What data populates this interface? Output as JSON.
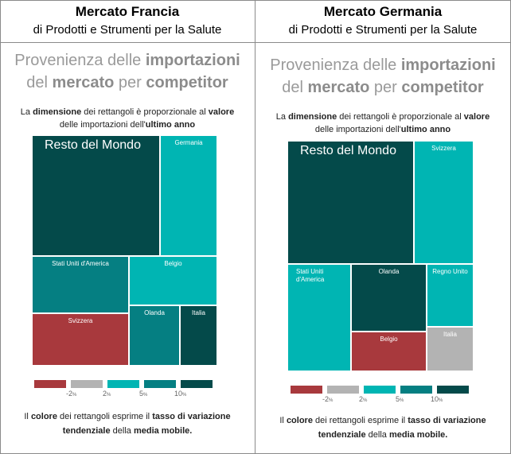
{
  "colors": {
    "dark": "#044a4a",
    "teal": "#00b5b3",
    "midteal": "#057f82",
    "red": "#a8393d",
    "grey": "#b3b3b3"
  },
  "left": {
    "title": "Mercato Francia",
    "subtitle": "di Prodotti e Strumenti per la Salute",
    "heading": {
      "p1": "Provenienza delle ",
      "b1": "importazioni",
      "p2": "del ",
      "b2": "mercato",
      "p3": " per ",
      "b3": "competitor"
    },
    "note_top": {
      "a": "La ",
      "b": "dimensione",
      "c": " dei rettangoli è proporzionale al ",
      "d": "valore",
      "e": "delle importazioni dell'",
      "f": "ultimo anno"
    },
    "note_bottom": {
      "a": "Il ",
      "b": "colore",
      "c": " dei rettangoli esprime il ",
      "d": "tasso di variazione",
      "e": "tendenziale",
      "f": " della ",
      "g": "media mobile."
    }
  },
  "right": {
    "title": "Mercato Germania",
    "subtitle": "di Prodotti e Strumenti per la Salute",
    "heading": {
      "p1": "Provenienza delle ",
      "b1": "importazioni",
      "p2": "del ",
      "b2": "mercato",
      "p3": " per ",
      "b3": "competitor"
    },
    "note_top": {
      "a": "La ",
      "b": "dimensione",
      "c": " dei rettangoli è proporzionale al ",
      "d": "valore",
      "e": "delle importazioni dell'",
      "f": "ultimo anno"
    },
    "note_bottom": {
      "a": "Il ",
      "b": "colore",
      "c": " dei rettangoli esprime il ",
      "d": "tasso di variazione",
      "e": "tendenziale",
      "f": " della ",
      "g": "media mobile."
    }
  },
  "legend": {
    "labels": [
      "-2",
      "2",
      "5",
      "10"
    ],
    "unit": "%",
    "colors": [
      "#a8393d",
      "#b3b3b3",
      "#00b5b3",
      "#057f82",
      "#044a4a"
    ]
  },
  "chart_data": [
    {
      "type": "treemap",
      "title": "Mercato Francia",
      "items": [
        {
          "name": "Resto del Mondo",
          "color": "#044a4a"
        },
        {
          "name": "Germania",
          "color": "#00b5b3"
        },
        {
          "name": "Stati Uniti d'America",
          "color": "#057f82"
        },
        {
          "name": "Belgio",
          "color": "#00b5b3"
        },
        {
          "name": "Svizzera",
          "color": "#a8393d"
        },
        {
          "name": "Olanda",
          "color": "#057f82"
        },
        {
          "name": "Italia",
          "color": "#044a4a"
        }
      ]
    },
    {
      "type": "treemap",
      "title": "Mercato Germania",
      "items": [
        {
          "name": "Resto del Mondo",
          "color": "#044a4a"
        },
        {
          "name": "Svizzera",
          "color": "#00b5b3"
        },
        {
          "name": "Stati Uniti d'America",
          "color": "#00b5b3"
        },
        {
          "name": "Olanda",
          "color": "#044a4a"
        },
        {
          "name": "Regno Unito",
          "color": "#00b5b3"
        },
        {
          "name": "Belgio",
          "color": "#a8393d"
        },
        {
          "name": "Italia",
          "color": "#b3b3b3"
        }
      ]
    }
  ]
}
